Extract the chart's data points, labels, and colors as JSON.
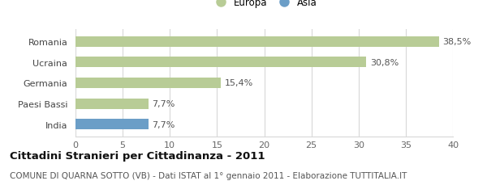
{
  "categories": [
    "Romania",
    "Ucraina",
    "Germania",
    "Paesi Bassi",
    "India"
  ],
  "values": [
    38.5,
    30.8,
    15.4,
    7.7,
    7.7
  ],
  "labels": [
    "38,5%",
    "30,8%",
    "15,4%",
    "7,7%",
    "7,7%"
  ],
  "bar_colors": [
    "#b8cc96",
    "#b8cc96",
    "#b8cc96",
    "#b8cc96",
    "#6b9ec7"
  ],
  "legend": [
    {
      "label": "Europa",
      "color": "#b8cc96"
    },
    {
      "label": "Asia",
      "color": "#6b9ec7"
    }
  ],
  "xlim": [
    0,
    40
  ],
  "xticks": [
    0,
    5,
    10,
    15,
    20,
    25,
    30,
    35,
    40
  ],
  "title": "Cittadini Stranieri per Cittadinanza - 2011",
  "subtitle": "COMUNE DI QUARNA SOTTO (VB) - Dati ISTAT al 1° gennaio 2011 - Elaborazione TUTTITALIA.IT",
  "background_color": "#ffffff",
  "bar_height": 0.5,
  "grid_color": "#d8d8d8",
  "title_fontsize": 9.5,
  "subtitle_fontsize": 7.5,
  "tick_fontsize": 8,
  "label_fontsize": 8,
  "legend_fontsize": 8.5
}
